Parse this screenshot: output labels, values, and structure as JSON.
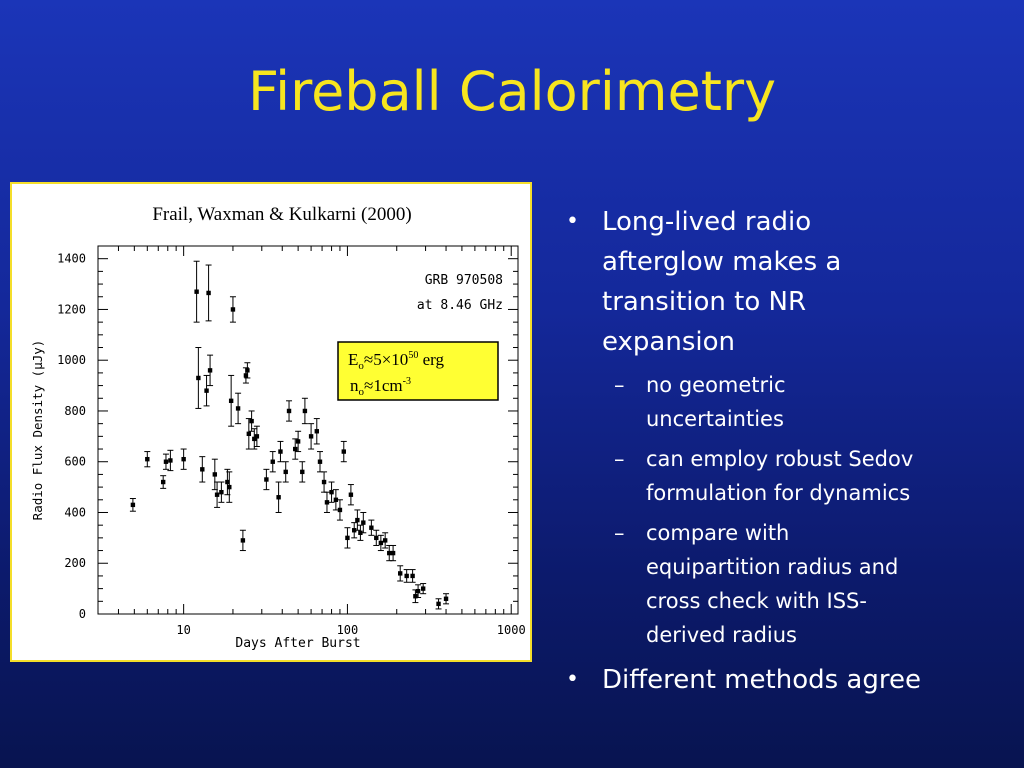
{
  "slide": {
    "title": "Fireball Calorimetry"
  },
  "figure": {
    "citation": "Frail, Waxman & Kulkarni (2000)",
    "label_line1": "GRB 970508",
    "label_line2": "at 8.46 GHz",
    "equation": {
      "e_sym": "E",
      "e_sub": "o",
      "e_rhs": "≈5×10",
      "e_exp": "50",
      "e_unit": " erg",
      "n_sym": "n",
      "n_sub": "o",
      "n_rhs": "≈1cm",
      "n_exp": "-3"
    },
    "colors": {
      "accent_border": "#f4de2a",
      "eq_box_fill": "#ffff33"
    }
  },
  "bullets": {
    "b1": "Long-lived radio afterglow makes a transition to NR expansion",
    "b1_line1": "Long-lived radio",
    "b1_line2": "afterglow makes a",
    "b1_line3": "transition to NR",
    "b1_line4": "expansion",
    "s1_line1": "no geometric",
    "s1_line2": "uncertainties",
    "s2_line1": "can employ robust Sedov",
    "s2_line2": "formulation for dynamics",
    "s3_line1": "compare with",
    "s3_line2": "equipartition radius and",
    "s3_line3": "cross check with ISS-",
    "s3_line4": "derived radius",
    "b2": "Different methods agree",
    "bullet_mark": "•",
    "dash_mark": "–"
  },
  "chart_data": {
    "type": "scatter",
    "xscale": "log",
    "xlabel": "Days After Burst",
    "ylabel": "Radio Flux Density (μJy)",
    "xlim": [
      3,
      1100
    ],
    "ylim": [
      0,
      1450
    ],
    "xticks": [
      10,
      100,
      1000
    ],
    "xtick_labels": [
      "10",
      "100",
      "1000"
    ],
    "yticks": [
      0,
      200,
      400,
      600,
      800,
      1000,
      1200,
      1400
    ],
    "ytick_labels": [
      "0",
      "200",
      "400",
      "600",
      "800",
      "1000",
      "1200",
      "1400"
    ],
    "grid": false,
    "points": [
      {
        "x": 4.9,
        "y": 430,
        "err": 25
      },
      {
        "x": 6,
        "y": 610,
        "err": 30
      },
      {
        "x": 7.5,
        "y": 520,
        "err": 25
      },
      {
        "x": 7.8,
        "y": 600,
        "err": 30
      },
      {
        "x": 8.3,
        "y": 605,
        "err": 40
      },
      {
        "x": 10,
        "y": 610,
        "err": 40
      },
      {
        "x": 12,
        "y": 1270,
        "err": 120
      },
      {
        "x": 12.3,
        "y": 930,
        "err": 120
      },
      {
        "x": 13,
        "y": 570,
        "err": 50
      },
      {
        "x": 13.8,
        "y": 880,
        "err": 60
      },
      {
        "x": 14.2,
        "y": 1265,
        "err": 110
      },
      {
        "x": 14.5,
        "y": 960,
        "err": 60
      },
      {
        "x": 15.5,
        "y": 550,
        "err": 60
      },
      {
        "x": 16,
        "y": 470,
        "err": 50
      },
      {
        "x": 17,
        "y": 480,
        "err": 40
      },
      {
        "x": 18.5,
        "y": 520,
        "err": 50
      },
      {
        "x": 19,
        "y": 500,
        "err": 60
      },
      {
        "x": 19.5,
        "y": 840,
        "err": 100
      },
      {
        "x": 20,
        "y": 1200,
        "err": 50
      },
      {
        "x": 21.5,
        "y": 810,
        "err": 60
      },
      {
        "x": 23,
        "y": 290,
        "err": 40
      },
      {
        "x": 24,
        "y": 940,
        "err": 30
      },
      {
        "x": 24.5,
        "y": 960,
        "err": 30
      },
      {
        "x": 25,
        "y": 710,
        "err": 60
      },
      {
        "x": 26,
        "y": 760,
        "err": 40
      },
      {
        "x": 27,
        "y": 690,
        "err": 40
      },
      {
        "x": 28,
        "y": 700,
        "err": 40
      },
      {
        "x": 32,
        "y": 530,
        "err": 40
      },
      {
        "x": 35,
        "y": 600,
        "err": 40
      },
      {
        "x": 38,
        "y": 460,
        "err": 60
      },
      {
        "x": 39,
        "y": 640,
        "err": 40
      },
      {
        "x": 42,
        "y": 560,
        "err": 40
      },
      {
        "x": 44,
        "y": 800,
        "err": 40
      },
      {
        "x": 48,
        "y": 650,
        "err": 40
      },
      {
        "x": 50,
        "y": 680,
        "err": 40
      },
      {
        "x": 53,
        "y": 560,
        "err": 40
      },
      {
        "x": 55,
        "y": 800,
        "err": 50
      },
      {
        "x": 60,
        "y": 700,
        "err": 50
      },
      {
        "x": 65,
        "y": 720,
        "err": 50
      },
      {
        "x": 68,
        "y": 600,
        "err": 40
      },
      {
        "x": 72,
        "y": 520,
        "err": 40
      },
      {
        "x": 75,
        "y": 440,
        "err": 40
      },
      {
        "x": 80,
        "y": 480,
        "err": 40
      },
      {
        "x": 85,
        "y": 450,
        "err": 40
      },
      {
        "x": 90,
        "y": 410,
        "err": 40
      },
      {
        "x": 95,
        "y": 640,
        "err": 40
      },
      {
        "x": 100,
        "y": 300,
        "err": 40
      },
      {
        "x": 105,
        "y": 470,
        "err": 40
      },
      {
        "x": 110,
        "y": 330,
        "err": 30
      },
      {
        "x": 115,
        "y": 370,
        "err": 40
      },
      {
        "x": 120,
        "y": 320,
        "err": 30
      },
      {
        "x": 125,
        "y": 360,
        "err": 40
      },
      {
        "x": 140,
        "y": 340,
        "err": 30
      },
      {
        "x": 150,
        "y": 300,
        "err": 30
      },
      {
        "x": 160,
        "y": 280,
        "err": 30
      },
      {
        "x": 170,
        "y": 290,
        "err": 30
      },
      {
        "x": 180,
        "y": 240,
        "err": 30
      },
      {
        "x": 190,
        "y": 240,
        "err": 30
      },
      {
        "x": 210,
        "y": 160,
        "err": 30
      },
      {
        "x": 230,
        "y": 150,
        "err": 25
      },
      {
        "x": 250,
        "y": 150,
        "err": 25
      },
      {
        "x": 260,
        "y": 70,
        "err": 25
      },
      {
        "x": 270,
        "y": 90,
        "err": 25
      },
      {
        "x": 290,
        "y": 100,
        "err": 20
      },
      {
        "x": 360,
        "y": 40,
        "err": 20
      },
      {
        "x": 400,
        "y": 60,
        "err": 20
      }
    ]
  }
}
